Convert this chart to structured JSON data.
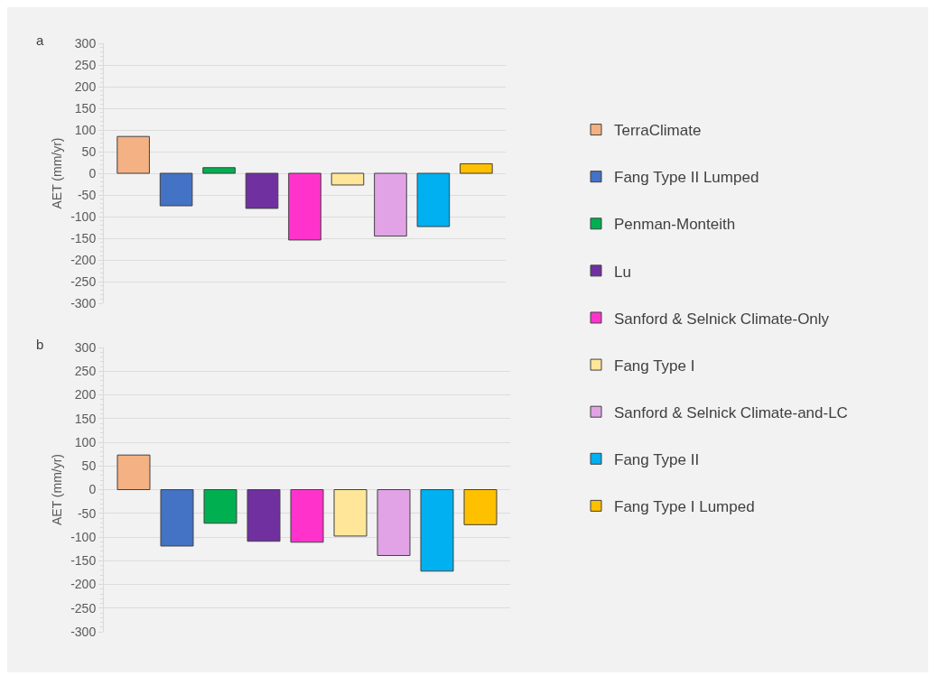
{
  "chart_data": [
    {
      "type": "bar",
      "title": "a",
      "ylabel": "AET (mm/yr)",
      "categories": [
        null
      ],
      "ylim": [
        -300,
        300
      ],
      "yticks": [
        -300,
        -250,
        -200,
        -150,
        -100,
        -50,
        0,
        50,
        100,
        150,
        200,
        250,
        300
      ],
      "grid": "y",
      "legend": "right",
      "series": [
        {
          "name": "TerraClimate",
          "color": "#f4b183",
          "values": [
            85
          ]
        },
        {
          "name": "Fang Type II Lumped",
          "color": "#4472c4",
          "values": [
            -75
          ]
        },
        {
          "name": "Penman-Monteith",
          "color": "#00b050",
          "values": [
            13
          ]
        },
        {
          "name": "Lu",
          "color": "#7030a0",
          "values": [
            -81
          ]
        },
        {
          "name": "Sanford & Selnick Climate-Only",
          "color": "#ff33cc",
          "values": [
            -154
          ]
        },
        {
          "name": "Fang Type I",
          "color": "#ffe699",
          "values": [
            -27
          ]
        },
        {
          "name": "Sanford & Selnick Climate-and-LC",
          "color": "#e2a3e6",
          "values": [
            -145
          ]
        },
        {
          "name": "Fang Type II",
          "color": "#00b0f0",
          "values": [
            -123
          ]
        },
        {
          "name": "Fang Type I Lumped",
          "color": "#ffc000",
          "values": [
            22
          ]
        }
      ]
    },
    {
      "type": "bar",
      "title": "b",
      "ylabel": "AET (mm/yr)",
      "categories": [
        null
      ],
      "ylim": [
        -300,
        300
      ],
      "yticks": [
        -300,
        -250,
        -200,
        -150,
        -100,
        -50,
        0,
        50,
        100,
        150,
        200,
        250,
        300
      ],
      "grid": "y",
      "series": [
        {
          "color": "#f4b183",
          "values": [
            73
          ]
        },
        {
          "color": "#4472c4",
          "values": [
            -119
          ]
        },
        {
          "color": "#00b050",
          "values": [
            -71
          ]
        },
        {
          "color": "#7030a0",
          "values": [
            -109
          ]
        },
        {
          "color": "#ff33cc",
          "values": [
            -111
          ]
        },
        {
          "color": "#ffe699",
          "values": [
            -98
          ]
        },
        {
          "color": "#e2a3e6",
          "values": [
            -139
          ]
        },
        {
          "color": "#00b0f0",
          "values": [
            -172
          ]
        },
        {
          "color": "#ffc000",
          "values": [
            -74
          ]
        }
      ]
    }
  ]
}
